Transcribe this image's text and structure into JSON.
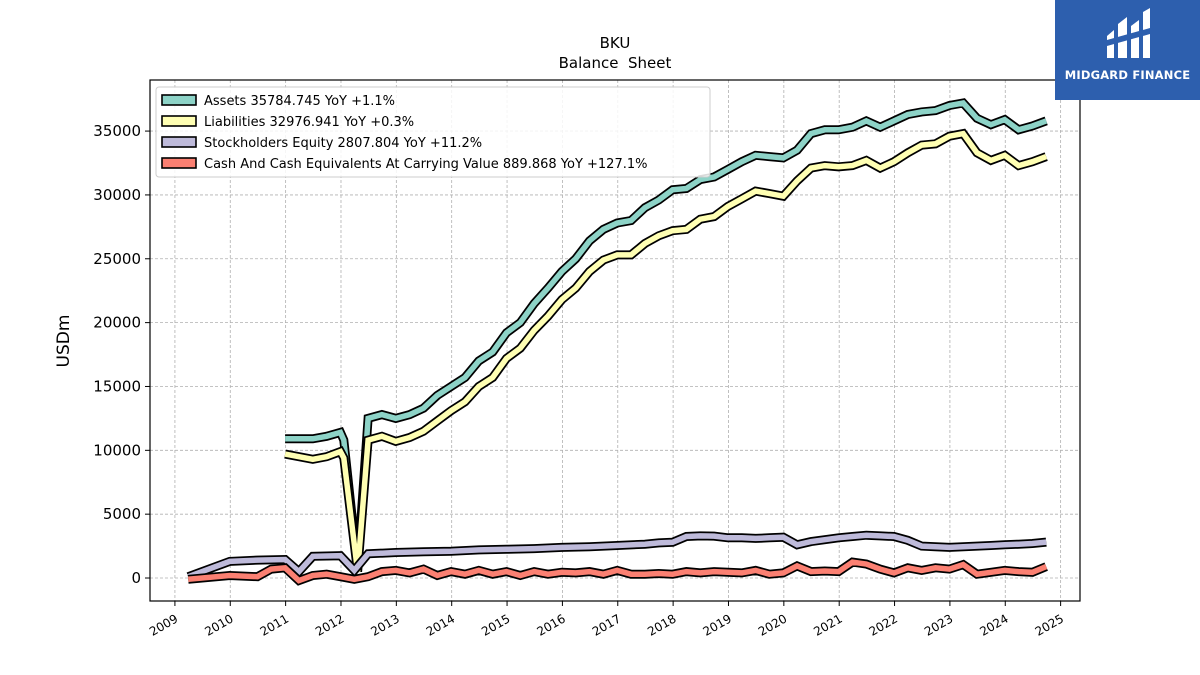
{
  "chart_data": {
    "type": "line",
    "title": "BKU",
    "subtitle": "Balance  Sheet",
    "ylabel": "USDm",
    "xlabel": "",
    "xlim": [
      2008.55,
      2025.35
    ],
    "ylim": [
      -1800,
      39000
    ],
    "grid": true,
    "legend_position": "top-left",
    "x_ticks": [
      2009,
      2010,
      2011,
      2012,
      2013,
      2014,
      2015,
      2016,
      2017,
      2018,
      2019,
      2020,
      2021,
      2022,
      2023,
      2024,
      2025
    ],
    "y_ticks": [
      0,
      5000,
      10000,
      15000,
      20000,
      25000,
      30000,
      35000
    ],
    "series": [
      {
        "name": "Assets  35784.745 YoY +1.1%",
        "color": "#8dd3c7",
        "x": [
          2010.99,
          2011.49,
          2011.74,
          2011.99,
          2012.05,
          2012.3,
          2012.49,
          2012.74,
          2012.99,
          2013.24,
          2013.49,
          2013.74,
          2013.99,
          2014.24,
          2014.49,
          2014.74,
          2014.99,
          2015.24,
          2015.49,
          2015.74,
          2015.99,
          2016.24,
          2016.49,
          2016.74,
          2016.99,
          2017.24,
          2017.49,
          2017.74,
          2017.99,
          2018.24,
          2018.49,
          2018.74,
          2018.99,
          2019.24,
          2019.49,
          2019.74,
          2019.99,
          2020.24,
          2020.49,
          2020.74,
          2020.99,
          2021.24,
          2021.49,
          2021.74,
          2021.99,
          2022.24,
          2022.49,
          2022.74,
          2022.99,
          2023.24,
          2023.49,
          2023.74,
          2023.99,
          2024.24,
          2024.49,
          2024.74
        ],
        "y": [
          10900,
          10900,
          11100,
          11400,
          10800,
          800,
          12500,
          12800,
          12500,
          12800,
          13300,
          14300,
          15000,
          15700,
          17000,
          17700,
          19200,
          20000,
          21500,
          22700,
          24000,
          25000,
          26400,
          27300,
          27800,
          28000,
          29000,
          29600,
          30400,
          30500,
          31200,
          31400,
          32000,
          32600,
          33100,
          33000,
          32900,
          33500,
          34800,
          35100,
          35100,
          35300,
          35800,
          35300,
          35800,
          36300,
          36500,
          36600,
          37000,
          37200,
          36000,
          35500,
          35900,
          35100,
          35400,
          35800
        ]
      },
      {
        "name": "Liabilities  32976.941 YoY +0.3%",
        "color": "#ffffb3",
        "x": [
          2010.99,
          2011.49,
          2011.74,
          2011.99,
          2012.05,
          2012.3,
          2012.49,
          2012.74,
          2012.99,
          2013.24,
          2013.49,
          2013.74,
          2013.99,
          2014.24,
          2014.49,
          2014.74,
          2014.99,
          2015.24,
          2015.49,
          2015.74,
          2015.99,
          2016.24,
          2016.49,
          2016.74,
          2016.99,
          2017.24,
          2017.49,
          2017.74,
          2017.99,
          2018.24,
          2018.49,
          2018.74,
          2018.99,
          2019.24,
          2019.49,
          2019.74,
          2019.99,
          2020.24,
          2020.49,
          2020.74,
          2020.99,
          2021.24,
          2021.49,
          2021.74,
          2021.99,
          2022.24,
          2022.49,
          2022.74,
          2022.99,
          2023.24,
          2023.49,
          2023.74,
          2023.99,
          2024.24,
          2024.49,
          2024.74
        ],
        "y": [
          9700,
          9300,
          9500,
          9900,
          9400,
          500,
          10800,
          11100,
          10700,
          11000,
          11500,
          12300,
          13100,
          13800,
          15000,
          15700,
          17200,
          18000,
          19400,
          20500,
          21800,
          22700,
          24000,
          24900,
          25300,
          25300,
          26200,
          26800,
          27200,
          27300,
          28100,
          28300,
          29100,
          29700,
          30300,
          30100,
          29900,
          31100,
          32100,
          32300,
          32200,
          32300,
          32700,
          32100,
          32600,
          33300,
          33900,
          34000,
          34600,
          34800,
          33300,
          32700,
          33100,
          32300,
          32600,
          33000
        ]
      },
      {
        "name": "Stockholders Equity  2807.804 YoY +11.2%",
        "color": "#bebada",
        "x": [
          2009.24,
          2009.99,
          2010.49,
          2010.99,
          2011.24,
          2011.49,
          2011.99,
          2012.24,
          2012.49,
          2012.99,
          2013.49,
          2013.99,
          2014.49,
          2014.99,
          2015.49,
          2015.99,
          2016.49,
          2016.99,
          2017.49,
          2017.74,
          2017.99,
          2018.24,
          2018.49,
          2018.74,
          2018.99,
          2019.24,
          2019.49,
          2019.74,
          2019.99,
          2020.24,
          2020.49,
          2020.74,
          2020.99,
          2021.24,
          2021.49,
          2021.74,
          2021.99,
          2022.24,
          2022.49,
          2022.74,
          2022.99,
          2023.24,
          2023.49,
          2023.74,
          2023.99,
          2024.24,
          2024.49,
          2024.74
        ],
        "y": [
          100,
          1300,
          1400,
          1450,
          500,
          1700,
          1750,
          600,
          1900,
          2000,
          2050,
          2100,
          2200,
          2250,
          2300,
          2400,
          2450,
          2550,
          2650,
          2750,
          2800,
          3250,
          3300,
          3280,
          3150,
          3150,
          3100,
          3150,
          3200,
          2600,
          2850,
          3000,
          3150,
          3250,
          3350,
          3300,
          3250,
          2950,
          2500,
          2450,
          2400,
          2450,
          2500,
          2550,
          2600,
          2650,
          2700,
          2810
        ]
      },
      {
        "name": "Cash And Cash Equivalents At Carrying Value  889.868 YoY +127.1%",
        "color": "#fb8072",
        "x": [
          2009.24,
          2009.99,
          2010.49,
          2010.74,
          2010.99,
          2011.24,
          2011.49,
          2011.74,
          2011.99,
          2012.24,
          2012.49,
          2012.74,
          2012.99,
          2013.24,
          2013.49,
          2013.74,
          2013.99,
          2014.24,
          2014.49,
          2014.74,
          2014.99,
          2015.24,
          2015.49,
          2015.74,
          2015.99,
          2016.24,
          2016.49,
          2016.74,
          2016.99,
          2017.24,
          2017.49,
          2017.74,
          2017.99,
          2018.24,
          2018.49,
          2018.74,
          2018.99,
          2019.24,
          2019.49,
          2019.74,
          2019.99,
          2020.24,
          2020.49,
          2020.74,
          2020.99,
          2021.24,
          2021.49,
          2021.74,
          2021.99,
          2022.24,
          2022.49,
          2022.74,
          2022.99,
          2023.24,
          2023.49,
          2023.74,
          2023.99,
          2024.24,
          2024.49,
          2024.74
        ],
        "y": [
          -100,
          200,
          100,
          700,
          800,
          -200,
          200,
          300,
          100,
          -100,
          100,
          500,
          600,
          400,
          700,
          200,
          500,
          300,
          600,
          300,
          500,
          200,
          500,
          300,
          450,
          400,
          500,
          300,
          600,
          300,
          300,
          350,
          300,
          500,
          400,
          500,
          450,
          400,
          600,
          300,
          400,
          950,
          500,
          550,
          500,
          1250,
          1100,
          700,
          400,
          800,
          600,
          800,
          700,
          1050,
          300,
          450,
          600,
          500,
          450,
          890
        ]
      }
    ]
  },
  "logo": {
    "text": "MIDGARD FINANCE"
  }
}
